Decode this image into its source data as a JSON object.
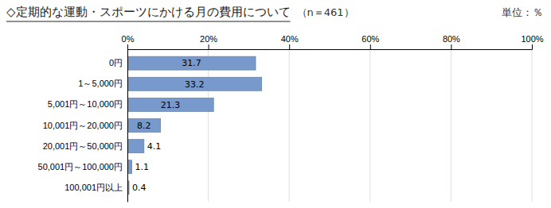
{
  "chart_data": {
    "type": "bar",
    "orientation": "horizontal",
    "title": "◇定期的な運動・スポーツにかける月の費用について",
    "subtitle": "（n＝461）",
    "annotations": [
      "単位：％"
    ],
    "categories": [
      "0円",
      "1～5,000円",
      "5,001円～10,000円",
      "10,001円～20,000円",
      "20,001円～50,000円",
      "50,001円～100,000円",
      "100,001円以上"
    ],
    "values": [
      31.7,
      33.2,
      21.3,
      8.2,
      4.1,
      1.1,
      0.4
    ],
    "color": "#7799cc",
    "xlim": [
      0,
      100
    ],
    "xticks": [
      {
        "value": 0,
        "label": "0%"
      },
      {
        "value": 20,
        "label": "20%"
      },
      {
        "value": 40,
        "label": "40%"
      },
      {
        "value": 60,
        "label": "60%"
      },
      {
        "value": 80,
        "label": "80%"
      },
      {
        "value": 100,
        "label": "100%"
      }
    ],
    "grid": true,
    "data_labels": true
  }
}
